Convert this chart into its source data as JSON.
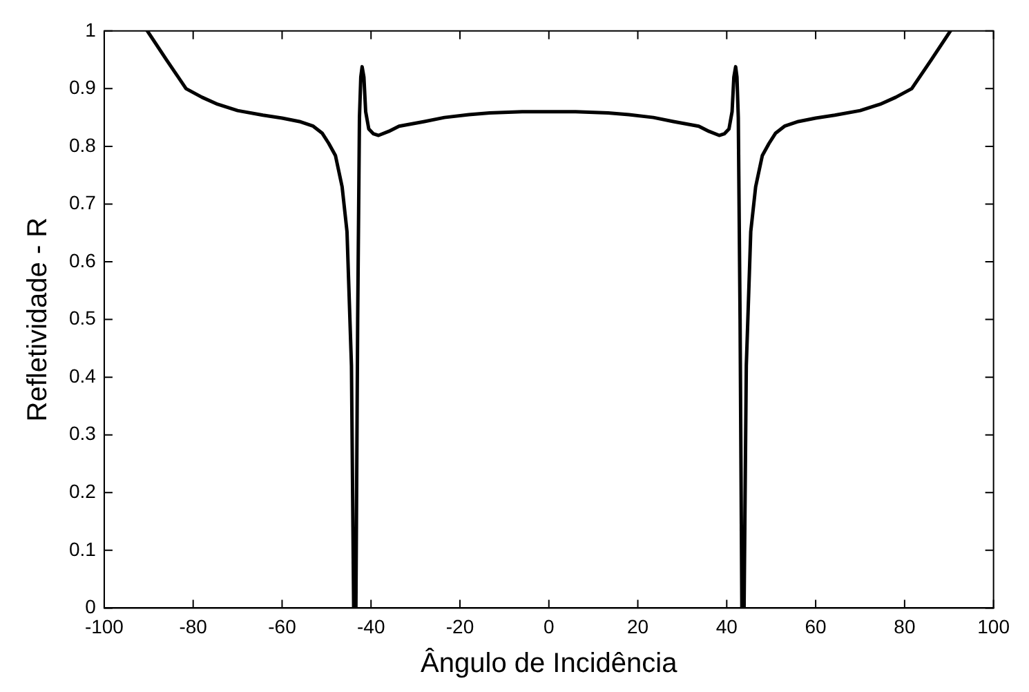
{
  "chart_data": {
    "type": "line",
    "xlabel": "Ângulo de Incidência",
    "ylabel": "Refletividade - R",
    "xlim": [
      -100,
      100
    ],
    "xticks": [
      -100,
      -80,
      -60,
      -40,
      -20,
      0,
      20,
      40,
      60,
      80,
      100
    ],
    "ylim": [
      0,
      1
    ],
    "yticks": [
      0,
      0.1,
      0.2,
      0.3,
      0.4,
      0.5,
      0.6,
      0.7,
      0.8,
      0.9,
      1
    ],
    "grid": false,
    "legend": false,
    "marker": "none",
    "line_style": "solid",
    "x": [
      -90.3,
      -86,
      -81.6,
      -78,
      -74.5,
      -70,
      -64.3,
      -60,
      -56.1,
      -53,
      -51,
      -49.5,
      -48,
      -46.5,
      -45.4,
      -44.4,
      -43.9,
      -43.4,
      -43,
      -42.6,
      -42.3,
      -42,
      -41.6,
      -41.2,
      -40.5,
      -39.5,
      -38.3,
      -36,
      -33.7,
      -28,
      -23.5,
      -18,
      -13.3,
      -6,
      0,
      6,
      13.3,
      18,
      23.5,
      28,
      33.7,
      36,
      38.3,
      39.5,
      40.5,
      41.2,
      41.6,
      42,
      42.3,
      42.6,
      43,
      43.4,
      43.9,
      44.4,
      45.4,
      46.5,
      48,
      49.5,
      51,
      53,
      56.1,
      60,
      64.3,
      70,
      74.5,
      78,
      81.6,
      86,
      90.3
    ],
    "series": [
      {
        "color": "#000000",
        "values": [
          1,
          0.95,
          0.9,
          0.885,
          0.873,
          0.862,
          0.854,
          0.849,
          0.843,
          0.835,
          0.823,
          0.805,
          0.784,
          0.73,
          0.652,
          0.42,
          0,
          0,
          0.5,
          0.85,
          0.92,
          0.938,
          0.92,
          0.86,
          0.83,
          0.822,
          0.819,
          0.826,
          0.835,
          0.843,
          0.85,
          0.855,
          0.858,
          0.86,
          0.86,
          0.86,
          0.858,
          0.855,
          0.85,
          0.843,
          0.835,
          0.826,
          0.819,
          0.822,
          0.83,
          0.86,
          0.92,
          0.938,
          0.92,
          0.85,
          0.5,
          0,
          0,
          0.42,
          0.652,
          0.73,
          0.784,
          0.805,
          0.823,
          0.835,
          0.843,
          0.849,
          0.854,
          0.862,
          0.873,
          0.885,
          0.9,
          0.95,
          1
        ]
      }
    ]
  }
}
